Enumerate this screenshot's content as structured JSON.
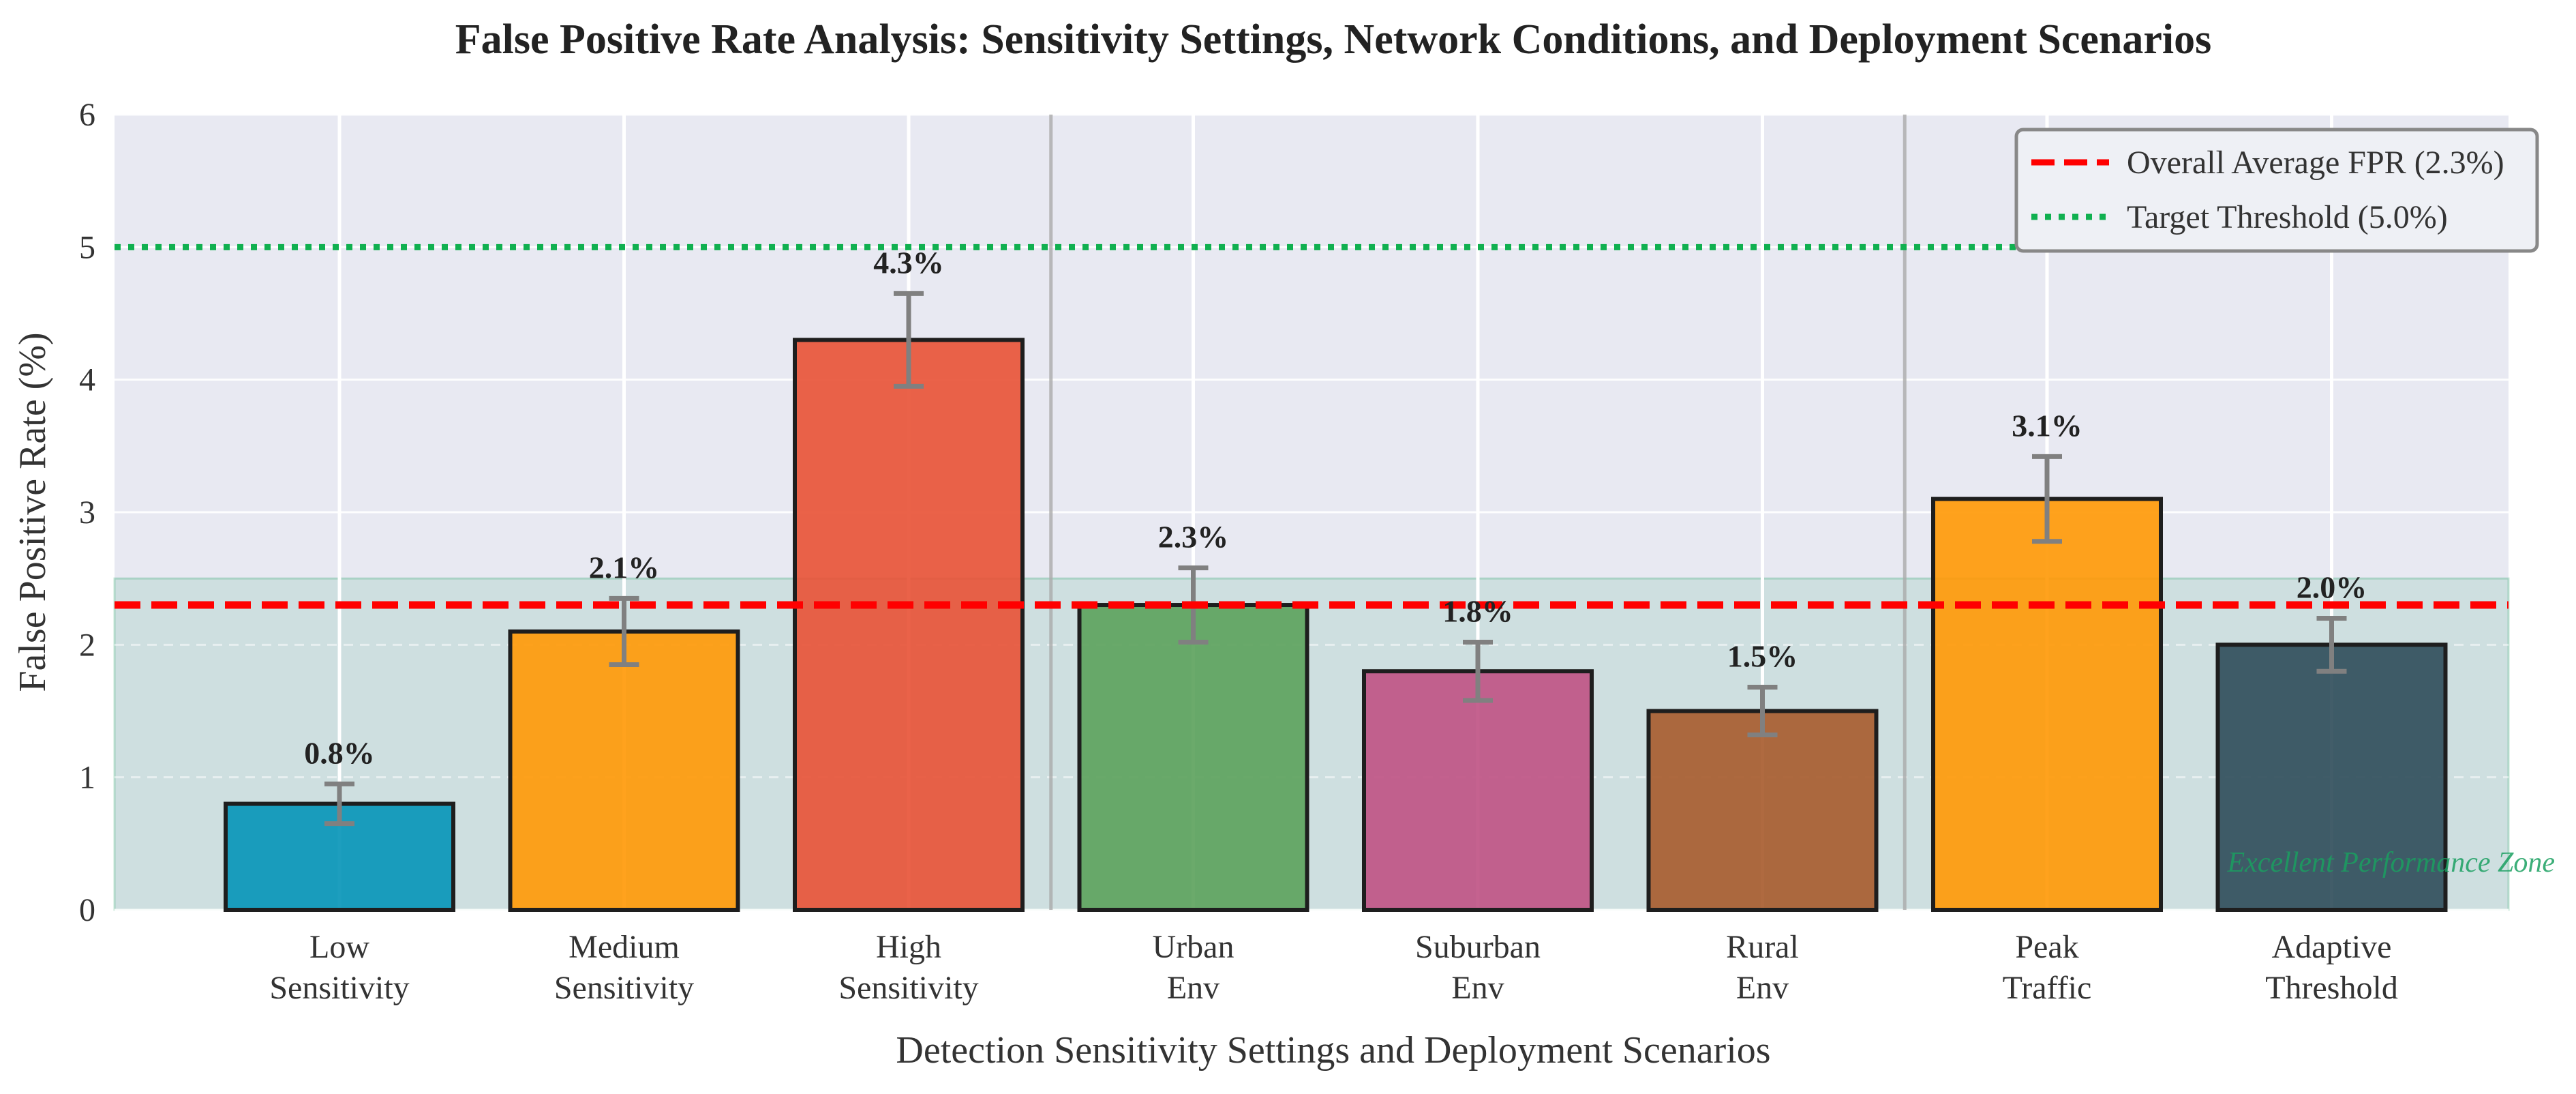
{
  "chart_data": {
    "type": "bar",
    "title": "False Positive Rate Analysis: Sensitivity Settings, Network Conditions, and Deployment Scenarios",
    "xlabel": "Detection Sensitivity Settings and Deployment Scenarios",
    "ylabel": "False Positive Rate (%)",
    "ylim": [
      0,
      6
    ],
    "yticks": [
      "0",
      "1",
      "2",
      "3",
      "4",
      "5",
      "6"
    ],
    "grid": true,
    "categories": [
      [
        "Low",
        "Sensitivity"
      ],
      [
        "Medium",
        "Sensitivity"
      ],
      [
        "High",
        "Sensitivity"
      ],
      [
        "Urban",
        "Env"
      ],
      [
        "Suburban",
        "Env"
      ],
      [
        "Rural",
        "Env"
      ],
      [
        "Peak",
        "Traffic"
      ],
      [
        "Adaptive",
        "Threshold"
      ]
    ],
    "values": [
      0.8,
      2.1,
      4.3,
      2.3,
      1.8,
      1.5,
      3.1,
      2.0
    ],
    "errors": [
      0.15,
      0.25,
      0.35,
      0.28,
      0.22,
      0.18,
      0.32,
      0.2
    ],
    "value_labels": [
      "0.8%",
      "2.1%",
      "4.3%",
      "2.3%",
      "1.8%",
      "1.5%",
      "3.1%",
      "2.0%"
    ],
    "colors": [
      "#0a96b8",
      "#ff9a0a",
      "#e8553a",
      "#5ea35e",
      "#c05585",
      "#a85d30",
      "#ff9a0a",
      "#324f5c"
    ],
    "group_separators_after": [
      2,
      5
    ],
    "reference_lines": [
      {
        "name": "Overall Average FPR (2.3%)",
        "value": 2.3,
        "color": "#ff0000",
        "style": "dashed"
      },
      {
        "name": "Target Threshold (5.0%)",
        "value": 5.0,
        "color": "#10b050",
        "style": "dotted"
      }
    ],
    "zone": {
      "label": "Excellent Performance Zone",
      "from": 0,
      "to": 2.5,
      "color": "#1aa060"
    },
    "legend_position": "top-right"
  }
}
